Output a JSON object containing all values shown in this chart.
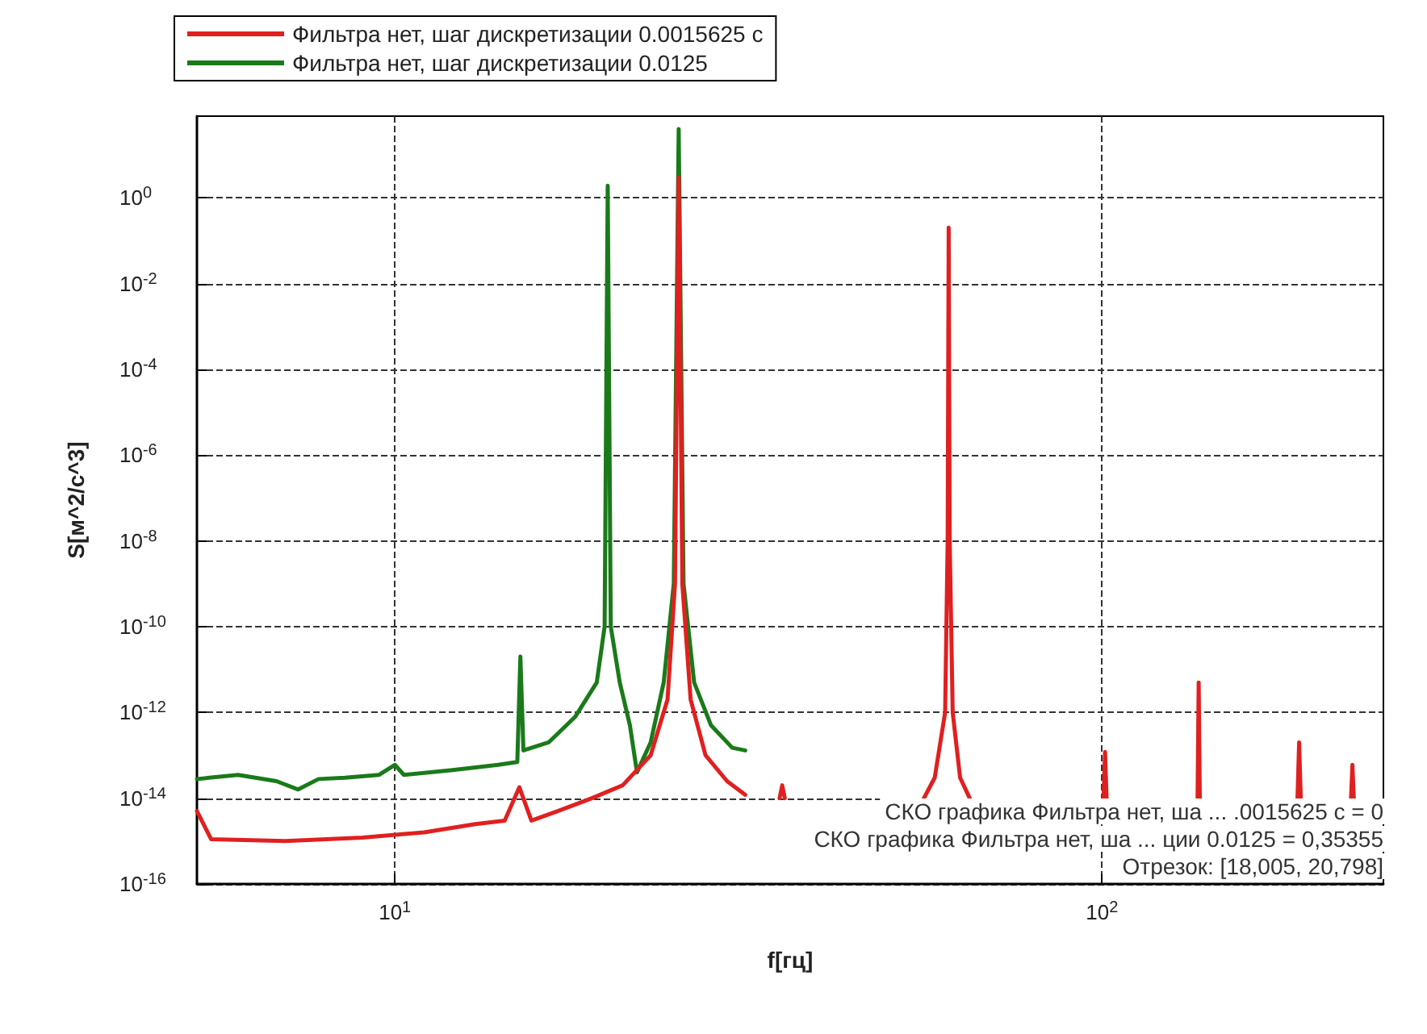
{
  "chart_data": {
    "type": "line",
    "xlabel": "f[гц]",
    "ylabel": "S[м^2/с^3]",
    "log": "xy",
    "grid": true,
    "legend": "top left",
    "marker": "none",
    "line_style": "solid",
    "xlim": [
      5.25,
      250
    ],
    "xticks": [
      {
        "value": 10,
        "label": "10$^{1}$"
      },
      {
        "value": 100,
        "label": "10$^{2}$"
      }
    ],
    "ylim": [
      1e-16,
      80
    ],
    "yticks": [
      {
        "value": 1,
        "label": "10$^{0}$"
      },
      {
        "value": 0.01,
        "label": "10$^{-2}$"
      },
      {
        "value": 0.0001,
        "label": "10$^{-4}$"
      },
      {
        "value": 1e-06,
        "label": "10$^{-6}$"
      },
      {
        "value": 1e-08,
        "label": "10$^{-8}$"
      },
      {
        "value": 1e-10,
        "label": "10$^{-10}$"
      },
      {
        "value": 1e-12,
        "label": "10$^{-12}$"
      },
      {
        "value": 1e-14,
        "label": "10$^{-14}$"
      },
      {
        "value": 1e-16,
        "label": "10$^{-16}$"
      }
    ],
    "series": [
      {
        "name": "Фильтра нет, шаг дискретизации 0.0015625 с",
        "color": "#e02020",
        "x": [
          5.25,
          5.5,
          7,
          9,
          11,
          13,
          14.3,
          15.0,
          15.6,
          17,
          19,
          21,
          23,
          24.3,
          24.9,
          25.2,
          25.5,
          26.2,
          27.5,
          29.5,
          31.3,
          33,
          35.0,
          35.3,
          35.6,
          40,
          56,
          58,
          60,
          60.5,
          60.7,
          60.9,
          61.5,
          63,
          65,
          70,
          100.5,
          101,
          101.5,
          120,
          136.5,
          137,
          137.5,
          160,
          189,
          190,
          191,
          210,
          225,
          226,
          227
        ],
        "values": [
          5e-15,
          1.1e-15,
          1e-15,
          1.2e-15,
          1.6e-15,
          2.5e-15,
          3e-15,
          1.8e-14,
          3e-15,
          5e-15,
          1e-14,
          2e-14,
          1e-13,
          2e-12,
          1e-09,
          3,
          1e-09,
          2e-12,
          1e-13,
          2.5e-14,
          1.2e-14,
          null,
          1e-14,
          2e-14,
          1e-14,
          null,
          1e-14,
          3e-14,
          1e-12,
          1e-08,
          0.2,
          1e-08,
          1e-12,
          3e-14,
          1e-14,
          null,
          1e-14,
          1.2e-13,
          1e-14,
          null,
          1e-14,
          5e-12,
          1e-14,
          null,
          1e-14,
          2e-13,
          1e-14,
          null,
          1e-14,
          6e-14,
          1e-14
        ]
      },
      {
        "name": "Фильтра нет, шаг дискретизации 0.0125",
        "color": "#1a7a1a",
        "x": [
          5.25,
          6.0,
          6.8,
          7.3,
          7.8,
          8.5,
          9.5,
          10,
          10.3,
          12,
          14,
          14.9,
          15.05,
          15.2,
          16.5,
          18,
          19.3,
          19.8,
          20,
          20.2,
          20.8,
          21.5,
          22,
          23,
          24,
          24.8,
          25.2,
          25.6,
          26.5,
          28,
          30,
          31.3
        ],
        "values": [
          2.8e-14,
          3.5e-14,
          2.5e-14,
          1.6e-14,
          2.8e-14,
          3e-14,
          3.5e-14,
          6e-14,
          3.5e-14,
          4.5e-14,
          6e-14,
          7e-14,
          2e-11,
          1.3e-13,
          2e-13,
          8e-13,
          5e-12,
          1e-10,
          1.9,
          1e-10,
          5e-12,
          5e-13,
          4e-14,
          2e-13,
          5e-12,
          1e-09,
          40,
          1e-09,
          5e-12,
          5e-13,
          1.5e-13,
          1.3e-13
        ]
      }
    ],
    "annotations": [
      "СКО графика Фильтра нет, ша ... .0015625 с = 0",
      "СКО графика Фильтра нет, ша ... ции 0.0125 = 0,35355",
      "Отрезок: [18,005, 20,798]"
    ]
  }
}
